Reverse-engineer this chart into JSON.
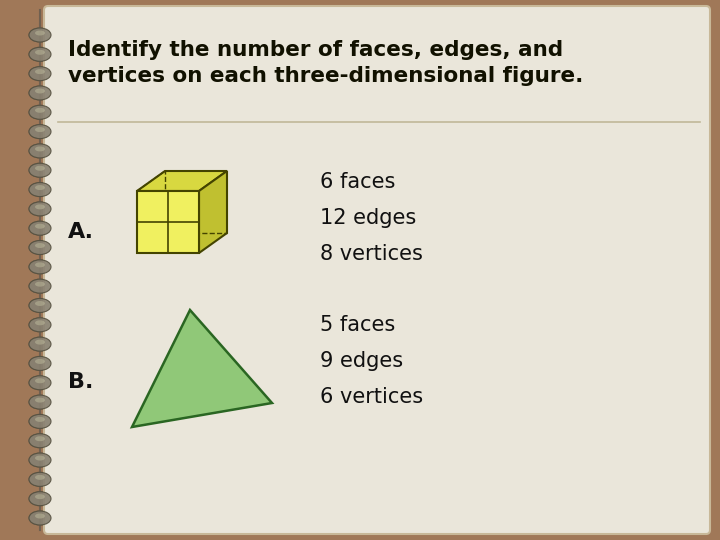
{
  "background_outer": "#a07858",
  "background_paper": "#eae6da",
  "spiral_color": "#888070",
  "spiral_highlight": "#ccccaa",
  "wire_color": "#706050",
  "title_text": "Identify the number of faces, edges, and\nvertices on each three-dimensional figure.",
  "title_color": "#111100",
  "title_fontsize": 15.5,
  "divider_color": "#c0b898",
  "label_A": "A.",
  "label_B": "B.",
  "label_fontsize": 16,
  "lines_A": [
    "6 faces",
    "12 edges",
    "8 vertices"
  ],
  "lines_B": [
    "5 faces",
    "9 edges",
    "6 vertices"
  ],
  "text_fontsize": 15,
  "cube_front_color": "#f0f060",
  "cube_top_color": "#d8d840",
  "cube_right_color": "#c0c030",
  "cube_edge_color": "#444400",
  "triangle_face_color": "#90c878",
  "triangle_edge_color": "#2a6622"
}
